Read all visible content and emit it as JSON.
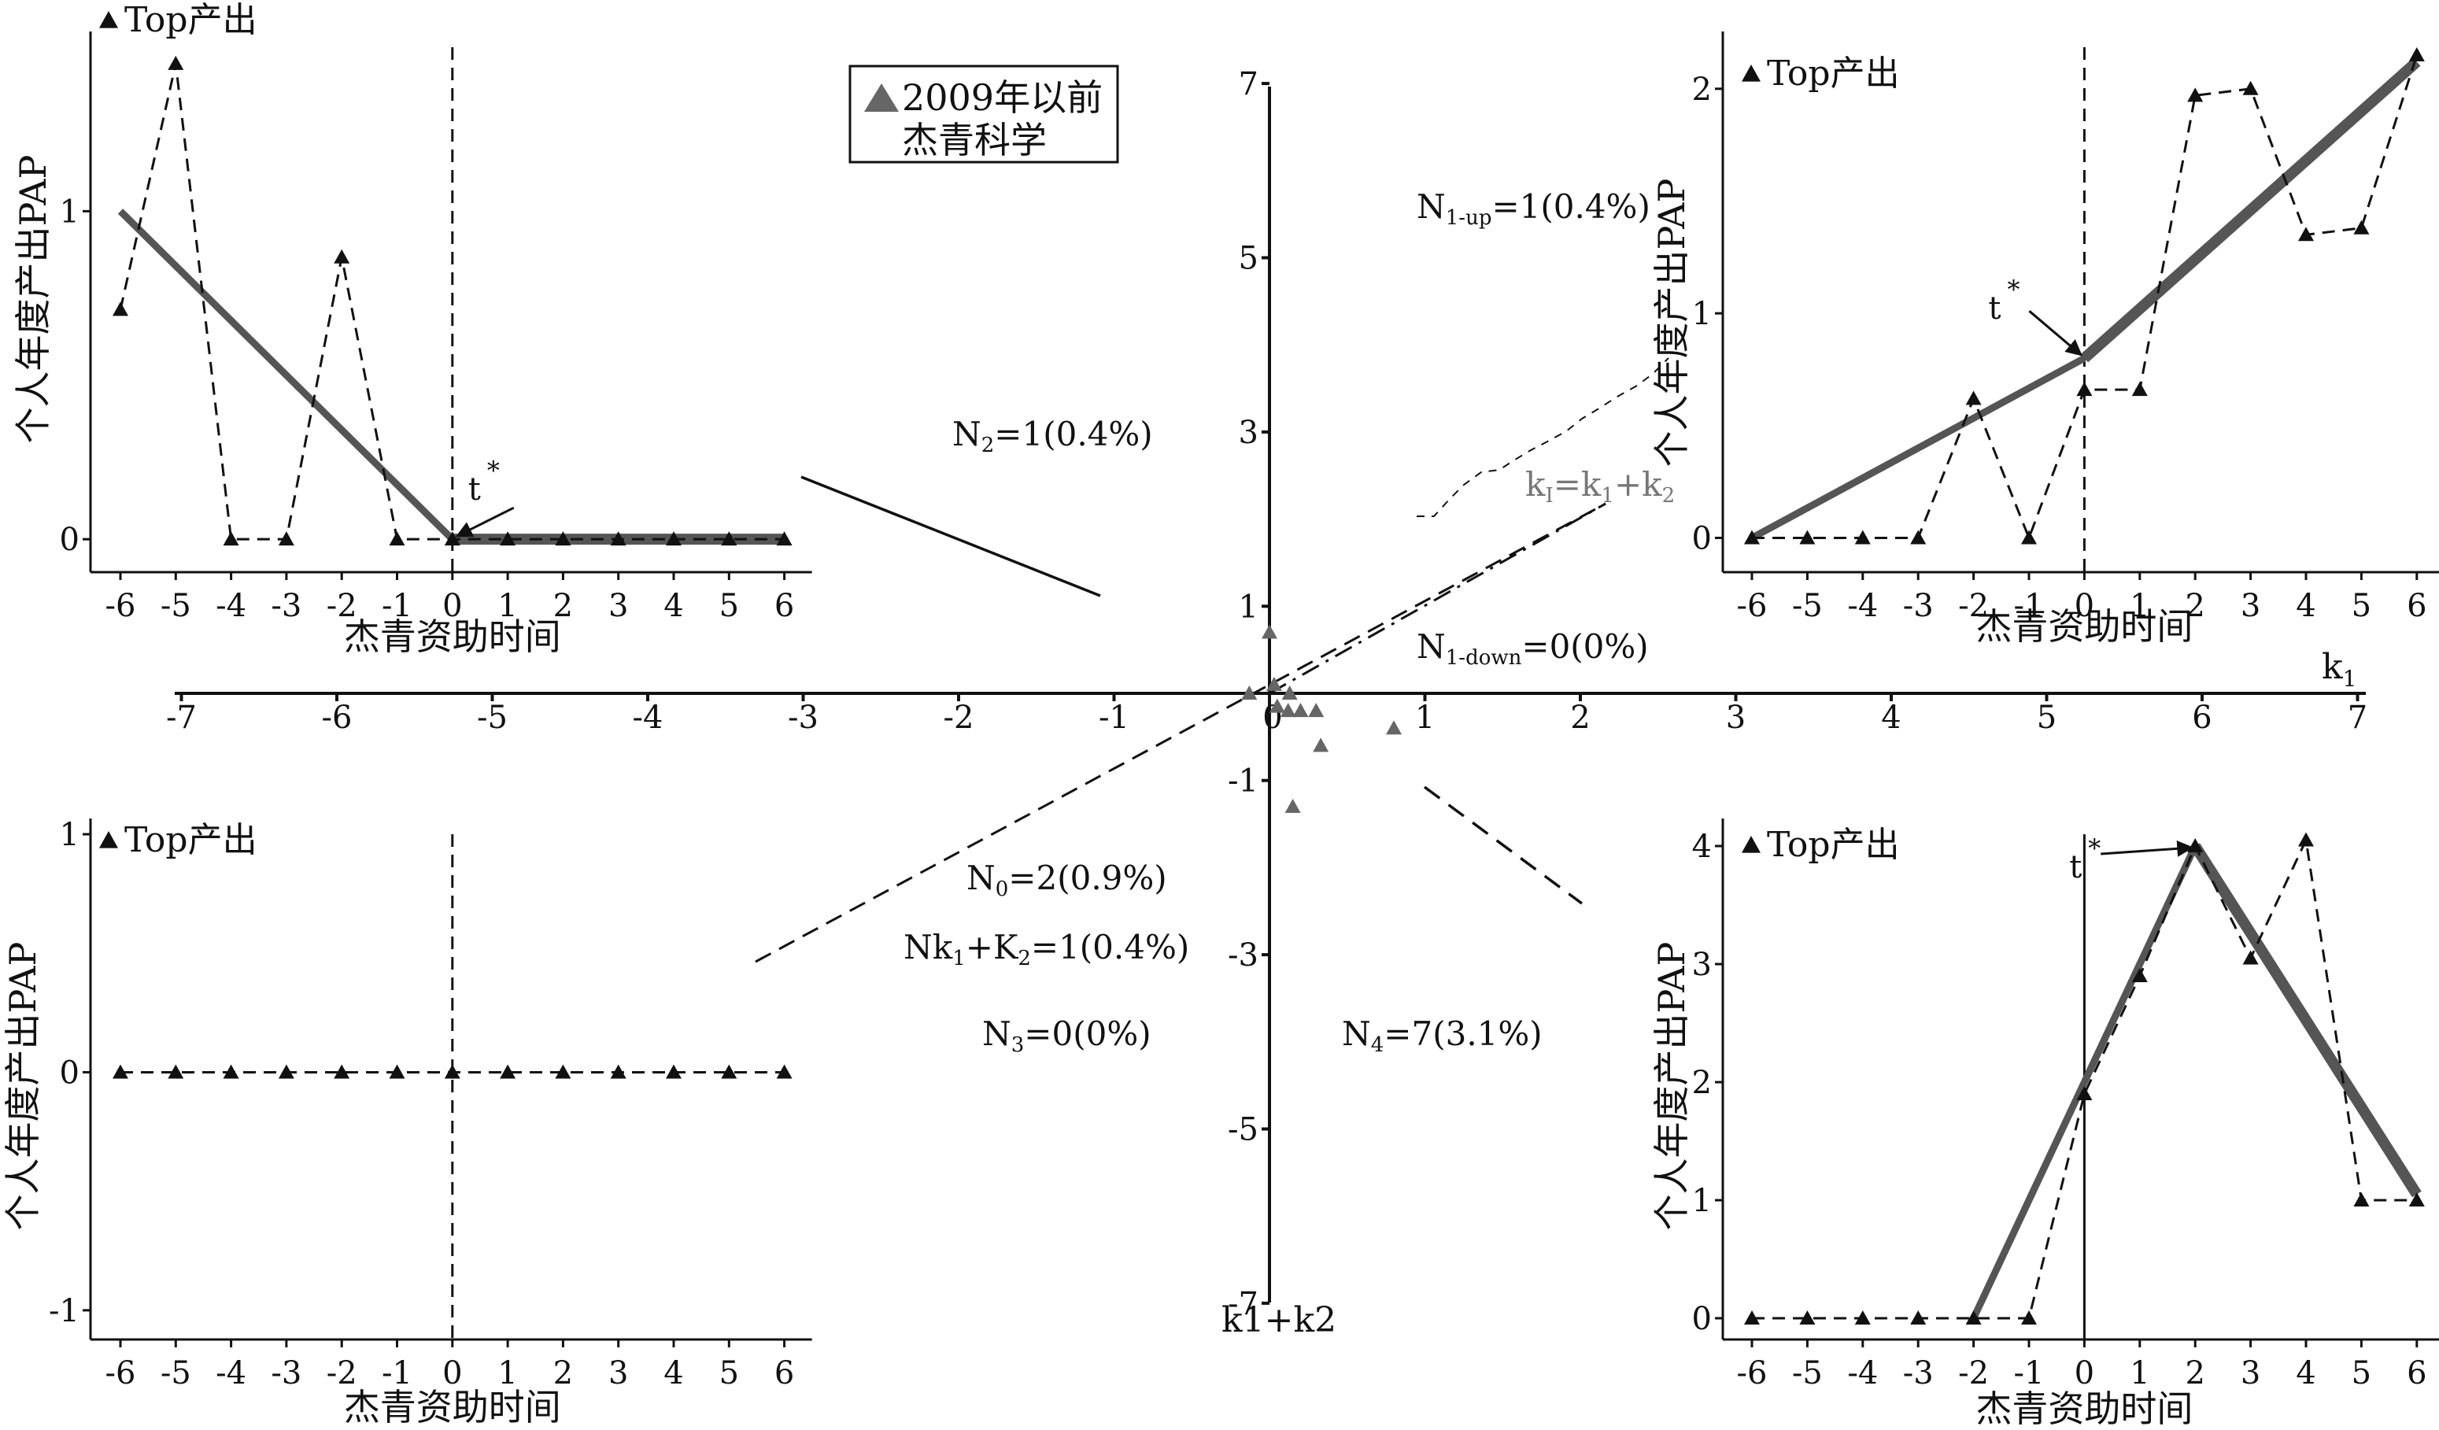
{
  "colors": {
    "fit": "#555555",
    "dots": "#666666",
    "ink": "#111111"
  },
  "legend": {
    "line1": "2009年以前",
    "line2": "杰青科学"
  },
  "center": {
    "x_ticks": [
      -7,
      -6,
      -5,
      -4,
      -3,
      -2,
      -1,
      0,
      1,
      2,
      3,
      4,
      5,
      6,
      7
    ],
    "y_ticks": [
      7,
      5,
      3,
      1,
      -1,
      -3,
      -5,
      -7
    ],
    "x_label": "k",
    "x_label_sub": "1",
    "y_label": "k1+k2",
    "diag_label": {
      "main": "k",
      "sub1": "I",
      "mid": "=k",
      "sub2": "1",
      "plus": "+k",
      "sub3": "2"
    },
    "n1_up": {
      "main": "N",
      "sub": "1-up",
      "rest": "=1(0.4%)"
    },
    "n1_down": {
      "main": "N",
      "sub": "1-down",
      "rest": "=0(0%)"
    },
    "n2": {
      "main": "N",
      "sub": "2",
      "rest": "=1(0.4%)"
    },
    "n0": {
      "main": "N",
      "sub": "0",
      "rest": "=2(0.9%)"
    },
    "nk": {
      "a": "Nk",
      "sub1": "1",
      "b": "+K",
      "sub2": "2",
      "rest": "=1(0.4%)"
    },
    "n3": {
      "main": "N",
      "sub": "3",
      "rest": "=0(0%)"
    },
    "n4": {
      "main": "N",
      "sub": "4",
      "rest": "=7(3.1%)"
    },
    "scatter": [
      [
        0.0,
        0.7
      ],
      [
        0.03,
        0.1
      ],
      [
        -0.13,
        0.0
      ],
      [
        0.13,
        0.0
      ],
      [
        0.05,
        -0.15
      ],
      [
        0.12,
        -0.2
      ],
      [
        0.2,
        -0.2
      ],
      [
        0.3,
        -0.2
      ],
      [
        0.33,
        -0.6
      ],
      [
        0.15,
        -1.3
      ],
      [
        0.8,
        -0.4
      ]
    ]
  },
  "chart_data": [
    {
      "type": "line",
      "panel": "top-left",
      "legend_label": "Top产出",
      "ylabel": "个人年度产出PAP",
      "xlabel": "杰青资助时间",
      "x": [
        -6,
        -5,
        -4,
        -3,
        -2,
        -1,
        0,
        1,
        2,
        3,
        4,
        5,
        6
      ],
      "x_ticks": [
        -6,
        -5,
        -4,
        -3,
        -2,
        -1,
        0,
        1,
        2,
        3,
        4,
        5,
        6
      ],
      "y_ticks": [
        0,
        1
      ],
      "ylim": [
        -0.05,
        1.5
      ],
      "series": [
        {
          "values": [
            0.7,
            1.45,
            0,
            0,
            0.86,
            0,
            0,
            0,
            0,
            0,
            0,
            0,
            0
          ]
        },
        {
          "values": [
            1.0,
            null,
            null,
            null,
            null,
            null,
            0,
            null,
            null,
            null,
            null,
            null,
            0
          ]
        }
      ],
      "t_star": {
        "label": "t",
        "sup": "*",
        "x": 0
      }
    },
    {
      "type": "line",
      "panel": "top-right",
      "legend_label": "Top产出",
      "ylabel": "个人年度产出PAP",
      "xlabel": "杰青资助时间",
      "x": [
        -6,
        -5,
        -4,
        -3,
        -2,
        -1,
        0,
        1,
        2,
        3,
        4,
        5,
        6
      ],
      "x_ticks": [
        -6,
        -5,
        -4,
        -3,
        -2,
        -1,
        0,
        1,
        2,
        3,
        4,
        5,
        6
      ],
      "y_ticks": [
        0,
        1,
        2
      ],
      "ylim": [
        -0.1,
        2.15
      ],
      "series": [
        {
          "values": [
            0,
            0,
            0,
            0,
            0.62,
            0,
            0.66,
            0.66,
            1.97,
            2.0,
            1.35,
            1.38,
            2.15
          ]
        },
        {
          "values": [
            0,
            null,
            null,
            null,
            null,
            null,
            0.8,
            null,
            null,
            null,
            null,
            null,
            2.12
          ]
        }
      ],
      "t_star": {
        "label": "t",
        "sup": "*",
        "x": 0
      }
    },
    {
      "type": "line",
      "panel": "bottom-left",
      "legend_label": "Top产出",
      "ylabel": "个人年度产出PAP",
      "xlabel": "杰青资助时间",
      "x": [
        -6,
        -5,
        -4,
        -3,
        -2,
        -1,
        0,
        1,
        2,
        3,
        4,
        5,
        6
      ],
      "x_ticks": [
        -6,
        -5,
        -4,
        -3,
        -2,
        -1,
        0,
        1,
        2,
        3,
        4,
        5,
        6
      ],
      "y_ticks": [
        1,
        0,
        -1
      ],
      "ylim": [
        -1.05,
        1.0
      ],
      "series": [
        {
          "values": [
            0,
            0,
            0,
            0,
            0,
            0,
            0,
            0,
            0,
            0,
            0,
            0,
            0
          ]
        }
      ]
    },
    {
      "type": "line",
      "panel": "bottom-right",
      "legend_label": "Top产出",
      "ylabel": "个人年度产出PAP",
      "xlabel": "杰青资助时间",
      "x": [
        -6,
        -5,
        -4,
        -3,
        -2,
        -1,
        0,
        1,
        2,
        3,
        4,
        5,
        6
      ],
      "x_ticks": [
        -6,
        -5,
        -4,
        -3,
        -2,
        -1,
        0,
        1,
        2,
        3,
        4,
        5,
        6
      ],
      "y_ticks": [
        0,
        1,
        2,
        3,
        4
      ],
      "ylim": [
        -0.1,
        4.1
      ],
      "series": [
        {
          "values": [
            0,
            0,
            0,
            0,
            0,
            0,
            1.9,
            2.9,
            4.0,
            3.05,
            4.05,
            1.0,
            1.0
          ]
        },
        {
          "values": [
            null,
            null,
            null,
            null,
            0,
            null,
            null,
            null,
            4.0,
            null,
            null,
            null,
            1.05
          ]
        }
      ],
      "t_star": {
        "label": "t",
        "sup": "*",
        "x": 2
      }
    }
  ]
}
